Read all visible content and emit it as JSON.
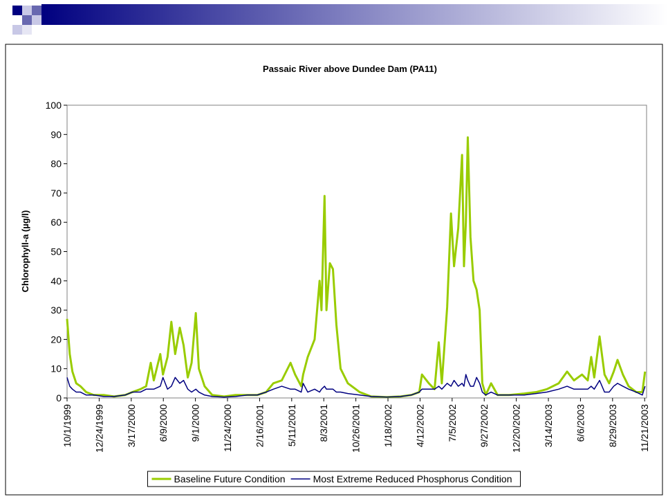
{
  "chart_data": {
    "type": "line",
    "title": "Passaic River above Dundee Dam (PA11)",
    "y_label": "Chlorophyll-a (µg/l)",
    "x": [
      "10/1/1999",
      "10/8/1999",
      "10/15/1999",
      "10/25/1999",
      "11/5/1999",
      "11/20/1999",
      "12/10/1999",
      "1/5/2000",
      "2/1/2000",
      "3/1/2000",
      "3/20/2000",
      "4/10/2000",
      "4/25/2000",
      "5/7/2000",
      "5/15/2000",
      "6/1/2000",
      "6/8/2000",
      "6/20/2000",
      "6/30/2000",
      "7/10/2000",
      "7/22/2000",
      "8/1/2000",
      "8/12/2000",
      "8/22/2000",
      "9/2/2000",
      "9/10/2000",
      "9/25/2000",
      "10/15/2000",
      "11/15/2000",
      "12/15/2000",
      "1/15/2001",
      "2/10/2001",
      "3/5/2001",
      "3/24/2001",
      "4/15/2001",
      "5/8/2001",
      "5/20/2001",
      "6/5/2001",
      "6/10/2001",
      "6/22/2001",
      "7/10/2001",
      "7/23/2001",
      "7/28/2001",
      "8/5/2001",
      "8/10/2001",
      "8/19/2001",
      "8/27/2001",
      "9/5/2001",
      "9/16/2001",
      "10/5/2001",
      "11/5/2001",
      "12/5/2001",
      "1/15/2002",
      "2/20/2002",
      "3/20/2002",
      "4/10/2002",
      "4/17/2002",
      "5/5/2002",
      "5/20/2002",
      "5/31/2002",
      "6/8/2002",
      "6/22/2002",
      "7/2/2002",
      "7/10/2002",
      "7/21/2002",
      "7/31/2002",
      "8/5/2002",
      "8/10/2002",
      "8/15/2002",
      "8/22/2002",
      "8/30/2002",
      "9/7/2002",
      "9/15/2002",
      "9/22/2002",
      "10/1/2002",
      "10/15/2002",
      "11/1/2002",
      "12/1/2002",
      "1/10/2003",
      "2/10/2003",
      "3/10/2003",
      "4/10/2003",
      "5/2/2003",
      "5/20/2003",
      "6/10/2003",
      "6/25/2003",
      "7/4/2003",
      "7/12/2003",
      "7/26/2003",
      "8/8/2003",
      "8/20/2003",
      "9/1/2003",
      "9/11/2003",
      "9/25/2003",
      "10/10/2003",
      "10/30/2003",
      "11/15/2003",
      "11/22/2003"
    ],
    "series": [
      {
        "name": "Baseline Future Condition",
        "color": "#99cc00",
        "values": [
          27,
          15,
          9,
          5,
          4,
          2,
          1,
          1,
          0.5,
          1,
          2,
          3,
          4,
          12,
          6,
          15,
          8,
          14,
          26,
          15,
          24,
          18,
          7,
          12,
          29,
          10,
          4,
          1,
          0.5,
          1,
          1,
          1,
          2,
          5,
          6,
          12,
          8,
          4,
          8,
          14,
          20,
          40,
          30,
          69,
          30,
          46,
          44,
          25,
          10,
          5,
          2,
          0.5,
          0.3,
          0.5,
          1,
          2,
          8,
          5,
          3,
          19,
          5,
          31,
          63,
          45,
          58,
          83,
          45,
          60,
          89,
          55,
          40,
          37,
          30,
          5,
          1,
          5,
          1,
          1,
          1.5,
          2,
          3,
          5,
          9,
          6,
          8,
          6,
          14,
          7,
          21,
          8,
          5,
          9,
          13,
          8,
          4,
          2,
          2,
          9
        ]
      },
      {
        "name": "Most Extreme Reduced Phosphorus Condition",
        "color": "#000080",
        "values": [
          7,
          4,
          3,
          2,
          2,
          1,
          1,
          0.5,
          0.5,
          1,
          2,
          2,
          3,
          3,
          3,
          4,
          7,
          3,
          4,
          7,
          5,
          6,
          3,
          2,
          3,
          2,
          1,
          0.5,
          0.3,
          0.5,
          1,
          1,
          2,
          3,
          4,
          3,
          3,
          2,
          5,
          2,
          3,
          2,
          3,
          4,
          3,
          3,
          3,
          2,
          2,
          1.5,
          1,
          0.5,
          0.3,
          0.5,
          1,
          2,
          3,
          3,
          3,
          4,
          3,
          5,
          4,
          6,
          4,
          5,
          4,
          8,
          6,
          4,
          4,
          7,
          5,
          2,
          1,
          2,
          1,
          1,
          1,
          1.5,
          2,
          3,
          4,
          3,
          3,
          3,
          4,
          3,
          6,
          2,
          2,
          4,
          5,
          4,
          3,
          2,
          1,
          4
        ]
      }
    ],
    "ylim": [
      0,
      100
    ],
    "yticks": [
      0,
      10,
      20,
      30,
      40,
      50,
      60,
      70,
      80,
      90,
      100
    ],
    "xlim": [
      "10/1/1999",
      "11/26/2003"
    ],
    "xticks": [
      "10/1/1999",
      "12/24/1999",
      "3/17/2000",
      "6/9/2000",
      "9/1/2000",
      "11/24/2000",
      "2/16/2001",
      "5/11/2001",
      "8/3/2001",
      "10/26/2001",
      "1/18/2002",
      "4/12/2002",
      "7/5/2002",
      "9/27/2002",
      "12/20/2002",
      "3/14/2003",
      "6/6/2003",
      "8/29/2003",
      "11/21/2003"
    ],
    "grid": false,
    "legend": "bottom"
  }
}
